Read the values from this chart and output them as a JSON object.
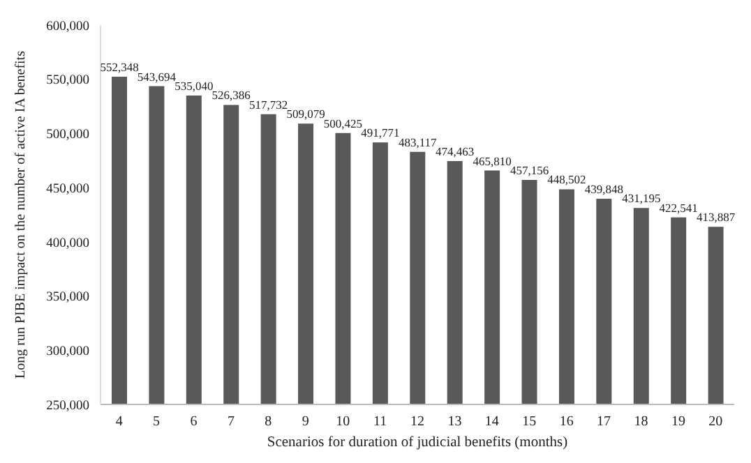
{
  "chart_data": {
    "type": "bar",
    "xlabel": "Scenarios for duration of judicial benefits (months)",
    "ylabel": "Long run PIBE impact on the number of active IA benefits",
    "categories": [
      "4",
      "5",
      "6",
      "7",
      "8",
      "9",
      "10",
      "11",
      "12",
      "13",
      "14",
      "15",
      "16",
      "17",
      "18",
      "19",
      "20"
    ],
    "values": [
      552348,
      543694,
      535040,
      526386,
      517732,
      509079,
      500425,
      491771,
      483117,
      474463,
      465810,
      457156,
      448502,
      439848,
      431195,
      422541,
      413887
    ],
    "color": "#595959",
    "ylim": [
      250000,
      600000
    ],
    "yticks": [
      {
        "value": 250000,
        "label": "250,000"
      },
      {
        "value": 300000,
        "label": "300,000"
      },
      {
        "value": 350000,
        "label": "350,000"
      },
      {
        "value": 400000,
        "label": "400,000"
      },
      {
        "value": 450000,
        "label": "450,000"
      },
      {
        "value": 500000,
        "label": "500,000"
      },
      {
        "value": 550000,
        "label": "550,000"
      },
      {
        "value": 600000,
        "label": "600,000"
      }
    ],
    "value_labels": [
      "552,348",
      "543,694",
      "535,040",
      "526,386",
      "517,732",
      "509,079",
      "500,425",
      "491,771",
      "483,117",
      "474,463",
      "465,810",
      "457,156",
      "448,502",
      "439,848",
      "431,195",
      "422,541",
      "413,887"
    ],
    "grid": false,
    "legend": false
  }
}
